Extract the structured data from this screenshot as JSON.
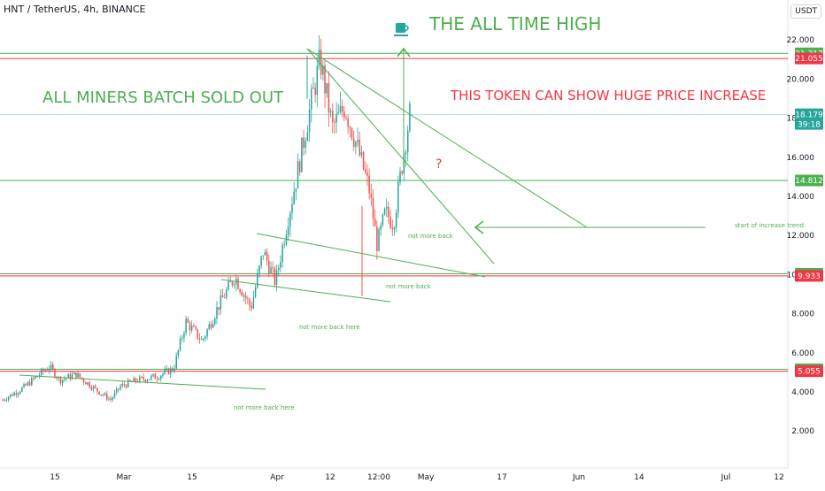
{
  "header": {
    "symbol": "HNT / TetherUS, 4h, BINANCE",
    "currency": "USDT"
  },
  "chart_data": {
    "type": "candlestick",
    "y_axis": {
      "ticks": [
        2,
        4,
        6,
        8,
        10,
        12,
        14,
        16,
        18,
        20,
        22
      ],
      "tick_labels": [
        "2.000",
        "4.000",
        "6.000",
        "8.000",
        "10.000",
        "12.000",
        "14.000",
        "16.000",
        "18.000",
        "20.000",
        "22.000"
      ],
      "range": [
        0.5,
        23.2
      ]
    },
    "x_axis": {
      "labels": [
        "15",
        "Mar",
        "15",
        "Apr",
        "12",
        "12:00",
        "May",
        "17",
        "Jun",
        "14",
        "Jul",
        "12"
      ]
    },
    "price_labels": [
      {
        "value": 21.317,
        "text": "21.317",
        "color": "#4caf50"
      },
      {
        "value": 21.055,
        "text": "21.055",
        "color": "#f23645"
      },
      {
        "value": 18.179,
        "text": "18.179",
        "sub": "39:18",
        "color": "#26a69a"
      },
      {
        "value": 14.812,
        "text": "14.812",
        "color": "#4caf50"
      },
      {
        "value": 10.038,
        "text": "10.038",
        "color": "#4caf50"
      },
      {
        "value": 9.933,
        "text": "9.933",
        "color": "#f23645"
      },
      {
        "value": 5.16,
        "text": "5.160",
        "color": "#4caf50"
      },
      {
        "value": 5.055,
        "text": "5.055",
        "color": "#f23645"
      }
    ],
    "horizontal_lines": [
      {
        "value": 21.317,
        "color": "#4caf50"
      },
      {
        "value": 21.055,
        "color": "#f23645"
      },
      {
        "value": 14.812,
        "color": "#4caf50"
      },
      {
        "value": 10.038,
        "color": "#4caf50"
      },
      {
        "value": 9.933,
        "color": "#f23645"
      },
      {
        "value": 5.16,
        "color": "#4caf50"
      },
      {
        "value": 5.055,
        "color": "#f23645"
      },
      {
        "value": 18.179,
        "color": "#b2dfdb"
      }
    ],
    "annotations": {
      "title": "THE ALL TIME HIGH",
      "left_note": "ALL MINERS BATCH SOLD OUT",
      "right_note": "THIS TOKEN CAN SHOW HUGE PRICE INCREASE",
      "question": "?",
      "trend_note": "start of increase trend",
      "not_more_back_1": "not more back",
      "not_more_back_2": "not more back",
      "not_more_back_here_1": "not more back here",
      "not_more_back_here_2": "not more back here"
    },
    "colors": {
      "up": "#26a69a",
      "down": "#ef5350",
      "drawing": "#4caf50",
      "annotation_red": "#f23645",
      "axis_text": "#131722"
    },
    "price_path": [
      {
        "t": 0,
        "v": 3.6
      },
      {
        "t": 0.05,
        "v": 4.2
      },
      {
        "t": 0.09,
        "v": 4.9
      },
      {
        "t": 0.115,
        "v": 5.3
      },
      {
        "t": 0.14,
        "v": 4.6
      },
      {
        "t": 0.18,
        "v": 4.9
      },
      {
        "t": 0.23,
        "v": 4.1
      },
      {
        "t": 0.265,
        "v": 3.6
      },
      {
        "t": 0.29,
        "v": 4.3
      },
      {
        "t": 0.33,
        "v": 4.6
      },
      {
        "t": 0.38,
        "v": 4.8
      },
      {
        "t": 0.42,
        "v": 5.2
      },
      {
        "t": 0.45,
        "v": 7.6
      },
      {
        "t": 0.49,
        "v": 6.6
      },
      {
        "t": 0.53,
        "v": 8.4
      },
      {
        "t": 0.57,
        "v": 9.9
      },
      {
        "t": 0.61,
        "v": 8.3
      },
      {
        "t": 0.64,
        "v": 11.2
      },
      {
        "t": 0.67,
        "v": 9.6
      },
      {
        "t": 0.7,
        "v": 12.8
      },
      {
        "t": 0.72,
        "v": 14.8
      },
      {
        "t": 0.75,
        "v": 18.0
      },
      {
        "t": 0.78,
        "v": 21.0
      },
      {
        "t": 0.81,
        "v": 17.5
      },
      {
        "t": 0.84,
        "v": 18.6
      },
      {
        "t": 0.87,
        "v": 16.6
      },
      {
        "t": 0.9,
        "v": 14.4
      },
      {
        "t": 0.92,
        "v": 11.5
      },
      {
        "t": 0.94,
        "v": 13.2
      },
      {
        "t": 0.96,
        "v": 12.6
      },
      {
        "t": 0.98,
        "v": 15.5
      },
      {
        "t": 1.0,
        "v": 18.2
      }
    ]
  }
}
